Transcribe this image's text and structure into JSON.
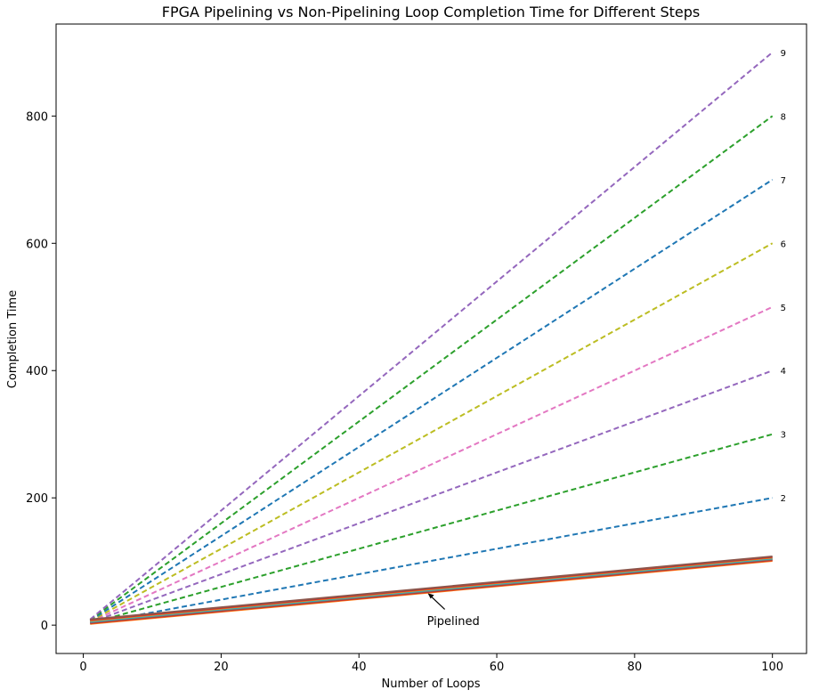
{
  "chart_data": {
    "type": "line",
    "title": "FPGA Pipelining vs Non-Pipelining Loop Completion Time for Different Steps",
    "xlabel": "Number of Loops",
    "ylabel": "Completion Time",
    "xlim": [
      -3.95,
      104.95
    ],
    "ylim": [
      -44.55,
      944.55
    ],
    "x_ticks": [
      0,
      20,
      40,
      60,
      80,
      100
    ],
    "y_ticks": [
      0,
      200,
      400,
      600,
      800
    ],
    "grid": false,
    "legend": "none",
    "x": [
      1,
      100
    ],
    "non_pipelined_series": [
      {
        "name": "2",
        "values": [
          2,
          200
        ],
        "color": "#1f77b4"
      },
      {
        "name": "3",
        "values": [
          3,
          300
        ],
        "color": "#2ca02c"
      },
      {
        "name": "4",
        "values": [
          4,
          400
        ],
        "color": "#9467bd"
      },
      {
        "name": "5",
        "values": [
          5,
          500
        ],
        "color": "#e377c2"
      },
      {
        "name": "6",
        "values": [
          6,
          600
        ],
        "color": "#bcbd22"
      },
      {
        "name": "7",
        "values": [
          7,
          700
        ],
        "color": "#1f77b4"
      },
      {
        "name": "8",
        "values": [
          8,
          800
        ],
        "color": "#2ca02c"
      },
      {
        "name": "9",
        "values": [
          9,
          900
        ],
        "color": "#9467bd"
      }
    ],
    "pipelined_series": [
      {
        "values": [
          2,
          101
        ],
        "color": "#ff7f0e"
      },
      {
        "values": [
          3,
          102
        ],
        "color": "#d62728"
      },
      {
        "values": [
          4,
          103
        ],
        "color": "#8c564b"
      },
      {
        "values": [
          5,
          104
        ],
        "color": "#7f7f7f"
      },
      {
        "values": [
          6,
          105
        ],
        "color": "#17becf"
      },
      {
        "values": [
          7,
          106
        ],
        "color": "#ff7f0e"
      },
      {
        "values": [
          8,
          107
        ],
        "color": "#d62728"
      },
      {
        "values": [
          9,
          108
        ],
        "color": "#8c564b"
      }
    ],
    "annotation": {
      "text": "Pipelined",
      "point": [
        50,
        50
      ],
      "text_at": [
        50,
        7
      ]
    }
  }
}
